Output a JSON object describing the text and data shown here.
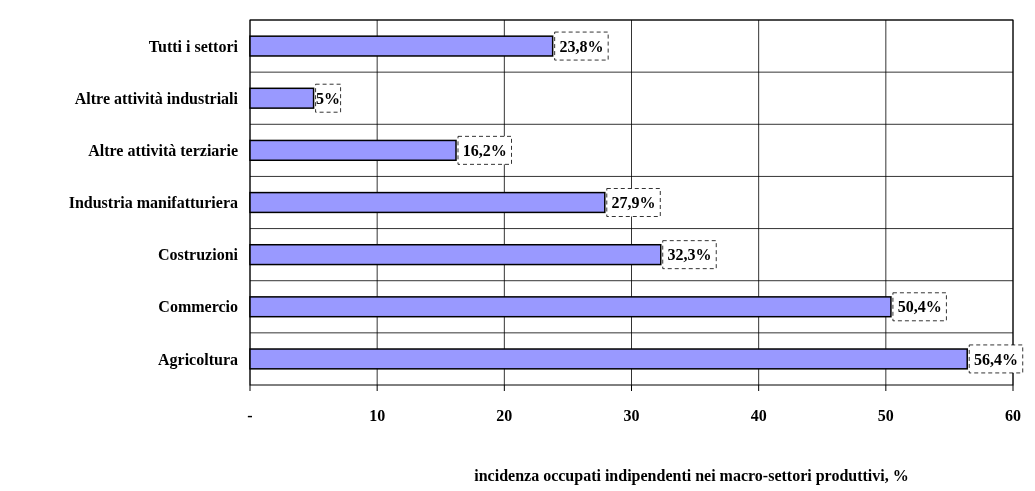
{
  "chart_data": {
    "type": "bar",
    "orientation": "horizontal",
    "xlabel": "incidenza occupati indipendenti nei macro-settori produttivi, %",
    "categories": [
      "Tutti i settori",
      "Altre attività industriali",
      "Altre attività terziarie",
      "Industria manifatturiera",
      "Costruzioni",
      "Commercio",
      "Agricoltura"
    ],
    "values": [
      23.8,
      5,
      16.2,
      27.9,
      32.3,
      50.4,
      56.4
    ],
    "value_labels": [
      "23,8%",
      "5%",
      "16,2%",
      "27,9%",
      "32,3%",
      "50,4%",
      "56,4%"
    ],
    "color": "#9999ff",
    "xlim": [
      0,
      60
    ],
    "xticks": [
      {
        "value": 0,
        "label": "-"
      },
      10,
      20,
      30,
      40,
      50,
      60
    ],
    "grid": true
  }
}
